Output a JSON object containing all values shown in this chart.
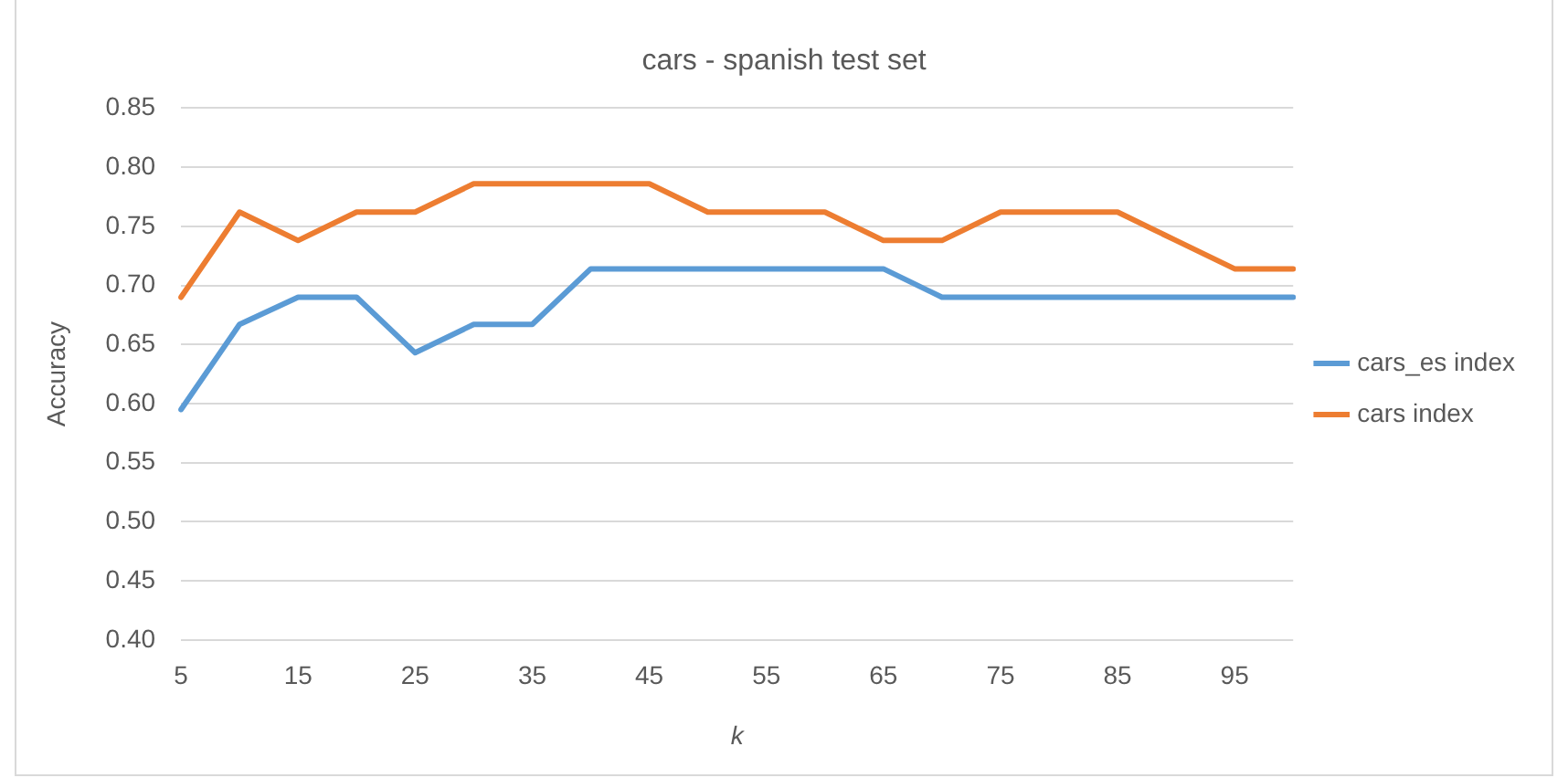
{
  "chart_data": {
    "type": "line",
    "title": "cars - spanish test set",
    "xlabel": "k",
    "ylabel": "Accuracy",
    "categories": [
      "5",
      null,
      "15",
      null,
      "25",
      null,
      "35",
      null,
      "45",
      null,
      "55",
      null,
      "65",
      null,
      "75",
      null,
      "85",
      null,
      "95",
      null
    ],
    "series": [
      {
        "name": "cars_es index",
        "color": "#5b9bd5",
        "values": [
          0.595,
          0.667,
          0.69,
          0.69,
          0.643,
          0.667,
          0.667,
          0.714,
          0.714,
          0.714,
          0.714,
          0.714,
          0.714,
          0.69,
          0.69,
          0.69,
          0.69,
          0.69,
          0.69,
          0.69
        ]
      },
      {
        "name": "cars index",
        "color": "#ed7d31",
        "values": [
          0.69,
          0.762,
          0.738,
          0.762,
          0.762,
          0.786,
          0.786,
          0.786,
          0.786,
          0.762,
          0.762,
          0.762,
          0.738,
          0.738,
          0.762,
          0.762,
          0.762,
          0.738,
          0.714,
          0.714
        ]
      }
    ],
    "ylim": [
      0.4,
      0.85
    ],
    "yticks": [
      {
        "value": 0.4,
        "label": "0.40"
      },
      {
        "value": 0.45,
        "label": "0.45"
      },
      {
        "value": 0.5,
        "label": "0.50"
      },
      {
        "value": 0.55,
        "label": "0.55"
      },
      {
        "value": 0.6,
        "label": "0.60"
      },
      {
        "value": 0.65,
        "label": "0.65"
      },
      {
        "value": 0.7,
        "label": "0.70"
      },
      {
        "value": 0.75,
        "label": "0.75"
      },
      {
        "value": 0.8,
        "label": "0.80"
      },
      {
        "value": 0.85,
        "label": "0.85"
      }
    ],
    "grid": "y",
    "legend": "right",
    "marker": "none",
    "line_style": "solid"
  }
}
